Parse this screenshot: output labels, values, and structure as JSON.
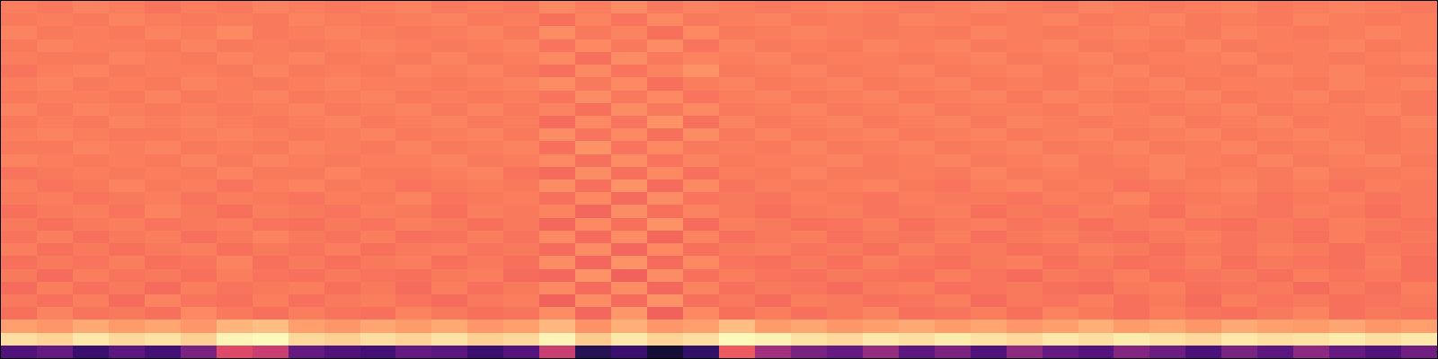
{
  "chart_data": {
    "type": "heatmap",
    "color": "magma",
    "tick_labels": false,
    "zlim": [
      0,
      1
    ],
    "cells": [
      [
        0.73,
        0.72,
        0.74,
        0.73,
        0.71,
        0.73,
        0.72,
        0.74,
        0.73,
        0.72,
        0.73,
        0.74,
        0.72,
        0.73,
        0.72,
        0.75,
        0.73,
        0.76,
        0.72,
        0.74,
        0.73,
        0.72,
        0.73,
        0.74,
        0.73,
        0.72,
        0.73,
        0.74,
        0.73,
        0.72,
        0.74,
        0.73,
        0.72,
        0.73,
        0.74,
        0.72,
        0.73,
        0.74,
        0.73,
        0.72
      ],
      [
        0.72,
        0.73,
        0.72,
        0.74,
        0.73,
        0.72,
        0.73,
        0.72,
        0.74,
        0.73,
        0.72,
        0.73,
        0.74,
        0.72,
        0.73,
        0.7,
        0.74,
        0.71,
        0.75,
        0.72,
        0.73,
        0.74,
        0.72,
        0.73,
        0.72,
        0.74,
        0.73,
        0.72,
        0.73,
        0.74,
        0.72,
        0.73,
        0.74,
        0.72,
        0.73,
        0.72,
        0.74,
        0.73,
        0.72,
        0.73
      ],
      [
        0.74,
        0.72,
        0.73,
        0.72,
        0.74,
        0.73,
        0.75,
        0.72,
        0.73,
        0.74,
        0.73,
        0.72,
        0.73,
        0.74,
        0.72,
        0.76,
        0.72,
        0.74,
        0.7,
        0.75,
        0.72,
        0.73,
        0.74,
        0.73,
        0.72,
        0.73,
        0.72,
        0.74,
        0.73,
        0.72,
        0.73,
        0.74,
        0.73,
        0.72,
        0.74,
        0.73,
        0.72,
        0.73,
        0.74,
        0.73
      ],
      [
        0.72,
        0.74,
        0.73,
        0.73,
        0.72,
        0.74,
        0.72,
        0.73,
        0.72,
        0.73,
        0.74,
        0.73,
        0.72,
        0.73,
        0.74,
        0.71,
        0.75,
        0.72,
        0.76,
        0.71,
        0.74,
        0.72,
        0.73,
        0.72,
        0.74,
        0.73,
        0.74,
        0.72,
        0.73,
        0.74,
        0.72,
        0.73,
        0.72,
        0.74,
        0.72,
        0.73,
        0.73,
        0.74,
        0.72,
        0.73
      ],
      [
        0.73,
        0.72,
        0.72,
        0.74,
        0.73,
        0.72,
        0.74,
        0.73,
        0.74,
        0.72,
        0.73,
        0.72,
        0.74,
        0.72,
        0.73,
        0.75,
        0.7,
        0.76,
        0.72,
        0.74,
        0.73,
        0.74,
        0.72,
        0.73,
        0.73,
        0.72,
        0.73,
        0.74,
        0.72,
        0.73,
        0.74,
        0.72,
        0.73,
        0.73,
        0.74,
        0.72,
        0.73,
        0.72,
        0.73,
        0.74
      ],
      [
        0.71,
        0.73,
        0.74,
        0.72,
        0.73,
        0.73,
        0.72,
        0.74,
        0.72,
        0.73,
        0.72,
        0.74,
        0.73,
        0.74,
        0.72,
        0.7,
        0.75,
        0.71,
        0.74,
        0.77,
        0.72,
        0.73,
        0.74,
        0.72,
        0.73,
        0.74,
        0.72,
        0.73,
        0.74,
        0.72,
        0.73,
        0.74,
        0.72,
        0.73,
        0.72,
        0.74,
        0.73,
        0.74,
        0.72,
        0.72
      ],
      [
        0.73,
        0.74,
        0.72,
        0.73,
        0.72,
        0.74,
        0.73,
        0.72,
        0.73,
        0.74,
        0.73,
        0.73,
        0.72,
        0.73,
        0.74,
        0.76,
        0.72,
        0.75,
        0.7,
        0.73,
        0.74,
        0.72,
        0.73,
        0.74,
        0.72,
        0.73,
        0.74,
        0.72,
        0.73,
        0.72,
        0.74,
        0.73,
        0.74,
        0.72,
        0.73,
        0.73,
        0.72,
        0.74,
        0.73,
        0.74
      ],
      [
        0.72,
        0.73,
        0.73,
        0.72,
        0.74,
        0.72,
        0.73,
        0.74,
        0.72,
        0.73,
        0.74,
        0.72,
        0.73,
        0.72,
        0.73,
        0.71,
        0.76,
        0.72,
        0.75,
        0.71,
        0.73,
        0.74,
        0.72,
        0.73,
        0.74,
        0.72,
        0.73,
        0.74,
        0.72,
        0.74,
        0.73,
        0.72,
        0.73,
        0.74,
        0.72,
        0.73,
        0.74,
        0.72,
        0.73,
        0.72
      ],
      [
        0.74,
        0.72,
        0.74,
        0.73,
        0.72,
        0.73,
        0.72,
        0.73,
        0.74,
        0.72,
        0.73,
        0.74,
        0.72,
        0.74,
        0.72,
        0.74,
        0.7,
        0.76,
        0.72,
        0.75,
        0.72,
        0.73,
        0.74,
        0.72,
        0.73,
        0.74,
        0.72,
        0.73,
        0.73,
        0.72,
        0.74,
        0.73,
        0.72,
        0.73,
        0.74,
        0.72,
        0.73,
        0.73,
        0.74,
        0.72
      ],
      [
        0.72,
        0.73,
        0.72,
        0.74,
        0.73,
        0.74,
        0.73,
        0.72,
        0.73,
        0.74,
        0.72,
        0.73,
        0.74,
        0.72,
        0.73,
        0.69,
        0.75,
        0.71,
        0.77,
        0.7,
        0.74,
        0.72,
        0.73,
        0.74,
        0.72,
        0.73,
        0.74,
        0.72,
        0.74,
        0.73,
        0.72,
        0.73,
        0.74,
        0.72,
        0.73,
        0.74,
        0.72,
        0.73,
        0.72,
        0.74
      ],
      [
        0.73,
        0.74,
        0.73,
        0.72,
        0.72,
        0.73,
        0.74,
        0.73,
        0.72,
        0.73,
        0.74,
        0.72,
        0.73,
        0.74,
        0.72,
        0.76,
        0.71,
        0.75,
        0.7,
        0.76,
        0.72,
        0.74,
        0.72,
        0.73,
        0.74,
        0.72,
        0.73,
        0.74,
        0.72,
        0.73,
        0.74,
        0.72,
        0.73,
        0.74,
        0.72,
        0.73,
        0.74,
        0.73,
        0.72,
        0.73
      ],
      [
        0.72,
        0.72,
        0.74,
        0.73,
        0.74,
        0.72,
        0.73,
        0.72,
        0.74,
        0.73,
        0.72,
        0.74,
        0.72,
        0.73,
        0.74,
        0.7,
        0.77,
        0.71,
        0.75,
        0.72,
        0.73,
        0.72,
        0.74,
        0.72,
        0.73,
        0.74,
        0.72,
        0.73,
        0.74,
        0.72,
        0.73,
        0.74,
        0.72,
        0.73,
        0.74,
        0.72,
        0.73,
        0.74,
        0.72,
        0.73
      ],
      [
        0.74,
        0.73,
        0.72,
        0.73,
        0.72,
        0.74,
        0.72,
        0.74,
        0.73,
        0.72,
        0.73,
        0.73,
        0.74,
        0.72,
        0.73,
        0.75,
        0.7,
        0.76,
        0.71,
        0.74,
        0.72,
        0.73,
        0.73,
        0.74,
        0.72,
        0.73,
        0.74,
        0.72,
        0.73,
        0.74,
        0.72,
        0.73,
        0.74,
        0.73,
        0.72,
        0.74,
        0.72,
        0.73,
        0.74,
        0.72
      ],
      [
        0.71,
        0.72,
        0.73,
        0.72,
        0.73,
        0.72,
        0.74,
        0.72,
        0.72,
        0.74,
        0.72,
        0.72,
        0.73,
        0.74,
        0.71,
        0.69,
        0.76,
        0.7,
        0.75,
        0.7,
        0.73,
        0.72,
        0.74,
        0.72,
        0.72,
        0.73,
        0.72,
        0.74,
        0.72,
        0.73,
        0.72,
        0.72,
        0.74,
        0.72,
        0.73,
        0.72,
        0.74,
        0.72,
        0.72,
        0.73
      ],
      [
        0.73,
        0.71,
        0.72,
        0.74,
        0.72,
        0.73,
        0.71,
        0.73,
        0.74,
        0.72,
        0.73,
        0.71,
        0.72,
        0.73,
        0.72,
        0.76,
        0.7,
        0.77,
        0.69,
        0.75,
        0.71,
        0.73,
        0.72,
        0.73,
        0.74,
        0.72,
        0.71,
        0.73,
        0.74,
        0.72,
        0.73,
        0.71,
        0.72,
        0.73,
        0.74,
        0.72,
        0.73,
        0.71,
        0.73,
        0.72
      ],
      [
        0.72,
        0.73,
        0.71,
        0.72,
        0.73,
        0.71,
        0.73,
        0.72,
        0.71,
        0.73,
        0.72,
        0.74,
        0.71,
        0.72,
        0.73,
        0.7,
        0.75,
        0.69,
        0.76,
        0.71,
        0.72,
        0.71,
        0.73,
        0.72,
        0.71,
        0.73,
        0.72,
        0.72,
        0.71,
        0.73,
        0.72,
        0.74,
        0.71,
        0.72,
        0.73,
        0.71,
        0.72,
        0.73,
        0.71,
        0.72
      ],
      [
        0.7,
        0.72,
        0.73,
        0.71,
        0.74,
        0.72,
        0.7,
        0.73,
        0.72,
        0.71,
        0.73,
        0.72,
        0.7,
        0.73,
        0.72,
        0.74,
        0.68,
        0.76,
        0.7,
        0.74,
        0.72,
        0.7,
        0.72,
        0.73,
        0.71,
        0.72,
        0.73,
        0.7,
        0.72,
        0.71,
        0.73,
        0.72,
        0.7,
        0.73,
        0.72,
        0.71,
        0.73,
        0.72,
        0.7,
        0.72
      ],
      [
        0.72,
        0.7,
        0.72,
        0.73,
        0.71,
        0.72,
        0.73,
        0.71,
        0.7,
        0.72,
        0.71,
        0.73,
        0.72,
        0.7,
        0.72,
        0.68,
        0.75,
        0.7,
        0.77,
        0.69,
        0.73,
        0.72,
        0.7,
        0.71,
        0.73,
        0.7,
        0.72,
        0.73,
        0.71,
        0.72,
        0.7,
        0.72,
        0.73,
        0.71,
        0.7,
        0.72,
        0.71,
        0.73,
        0.72,
        0.71
      ],
      [
        0.71,
        0.73,
        0.7,
        0.72,
        0.73,
        0.7,
        0.72,
        0.74,
        0.72,
        0.71,
        0.73,
        0.7,
        0.71,
        0.73,
        0.71,
        0.75,
        0.69,
        0.76,
        0.68,
        0.74,
        0.7,
        0.72,
        0.73,
        0.7,
        0.72,
        0.71,
        0.73,
        0.7,
        0.72,
        0.73,
        0.71,
        0.7,
        0.72,
        0.73,
        0.71,
        0.72,
        0.7,
        0.73,
        0.71,
        0.72
      ],
      [
        0.73,
        0.7,
        0.72,
        0.7,
        0.72,
        0.73,
        0.7,
        0.72,
        0.71,
        0.73,
        0.7,
        0.72,
        0.73,
        0.71,
        0.72,
        0.69,
        0.76,
        0.68,
        0.75,
        0.7,
        0.72,
        0.73,
        0.71,
        0.72,
        0.7,
        0.73,
        0.71,
        0.72,
        0.7,
        0.71,
        0.73,
        0.72,
        0.7,
        0.72,
        0.71,
        0.73,
        0.72,
        0.7,
        0.72,
        0.71
      ],
      [
        0.7,
        0.72,
        0.71,
        0.73,
        0.7,
        0.71,
        0.74,
        0.7,
        0.72,
        0.7,
        0.72,
        0.73,
        0.7,
        0.72,
        0.7,
        0.76,
        0.68,
        0.77,
        0.69,
        0.75,
        0.71,
        0.7,
        0.72,
        0.7,
        0.73,
        0.71,
        0.7,
        0.72,
        0.73,
        0.7,
        0.72,
        0.7,
        0.71,
        0.73,
        0.7,
        0.72,
        0.71,
        0.7,
        0.73,
        0.7
      ],
      [
        0.72,
        0.69,
        0.73,
        0.71,
        0.72,
        0.7,
        0.73,
        0.71,
        0.7,
        0.72,
        0.71,
        0.7,
        0.72,
        0.73,
        0.69,
        0.68,
        0.77,
        0.67,
        0.76,
        0.7,
        0.73,
        0.71,
        0.7,
        0.72,
        0.71,
        0.7,
        0.73,
        0.71,
        0.69,
        0.72,
        0.71,
        0.73,
        0.7,
        0.71,
        0.72,
        0.7,
        0.73,
        0.71,
        0.72,
        0.7
      ],
      [
        0.69,
        0.73,
        0.7,
        0.72,
        0.69,
        0.73,
        0.71,
        0.72,
        0.73,
        0.7,
        0.72,
        0.69,
        0.73,
        0.7,
        0.72,
        0.75,
        0.69,
        0.76,
        0.68,
        0.74,
        0.7,
        0.72,
        0.71,
        0.69,
        0.72,
        0.73,
        0.7,
        0.71,
        0.72,
        0.7,
        0.69,
        0.72,
        0.73,
        0.7,
        0.71,
        0.72,
        0.69,
        0.72,
        0.7,
        0.73
      ],
      [
        0.72,
        0.7,
        0.73,
        0.69,
        0.74,
        0.71,
        0.7,
        0.73,
        0.7,
        0.72,
        0.73,
        0.71,
        0.69,
        0.72,
        0.73,
        0.67,
        0.76,
        0.69,
        0.77,
        0.7,
        0.72,
        0.69,
        0.73,
        0.72,
        0.7,
        0.71,
        0.73,
        0.69,
        0.72,
        0.71,
        0.73,
        0.7,
        0.72,
        0.69,
        0.73,
        0.71,
        0.72,
        0.7,
        0.71,
        0.72
      ],
      [
        0.7,
        0.74,
        0.71,
        0.72,
        0.7,
        0.75,
        0.72,
        0.7,
        0.73,
        0.71,
        0.7,
        0.74,
        0.72,
        0.7,
        0.71,
        0.76,
        0.68,
        0.78,
        0.67,
        0.75,
        0.7,
        0.73,
        0.7,
        0.72,
        0.74,
        0.7,
        0.71,
        0.73,
        0.7,
        0.74,
        0.72,
        0.7,
        0.73,
        0.71,
        0.7,
        0.72,
        0.74,
        0.7,
        0.72,
        0.71
      ],
      [
        0.8,
        0.78,
        0.82,
        0.79,
        0.81,
        0.78,
        0.84,
        0.86,
        0.8,
        0.78,
        0.81,
        0.79,
        0.82,
        0.78,
        0.8,
        0.85,
        0.77,
        0.83,
        0.78,
        0.8,
        0.86,
        0.79,
        0.81,
        0.78,
        0.8,
        0.82,
        0.79,
        0.81,
        0.78,
        0.8,
        0.83,
        0.79,
        0.81,
        0.78,
        0.82,
        0.8,
        0.79,
        0.81,
        0.78,
        0.8
      ],
      [
        0.93,
        0.91,
        0.95,
        0.92,
        0.94,
        0.9,
        0.98,
        0.99,
        0.92,
        0.9,
        0.93,
        0.91,
        0.94,
        0.9,
        0.92,
        0.98,
        0.89,
        0.95,
        0.91,
        0.93,
        0.99,
        0.97,
        0.94,
        0.92,
        0.95,
        0.93,
        0.96,
        0.94,
        0.92,
        0.95,
        0.93,
        0.96,
        0.94,
        0.92,
        0.95,
        0.93,
        0.94,
        0.96,
        0.93,
        0.95
      ],
      [
        0.25,
        0.3,
        0.2,
        0.28,
        0.22,
        0.35,
        0.6,
        0.55,
        0.3,
        0.25,
        0.22,
        0.3,
        0.28,
        0.2,
        0.26,
        0.55,
        0.15,
        0.2,
        0.1,
        0.18,
        0.65,
        0.45,
        0.35,
        0.3,
        0.42,
        0.28,
        0.36,
        0.25,
        0.4,
        0.3,
        0.26,
        0.38,
        0.32,
        0.24,
        0.35,
        0.28,
        0.4,
        0.3,
        0.25,
        0.33
      ]
    ]
  }
}
